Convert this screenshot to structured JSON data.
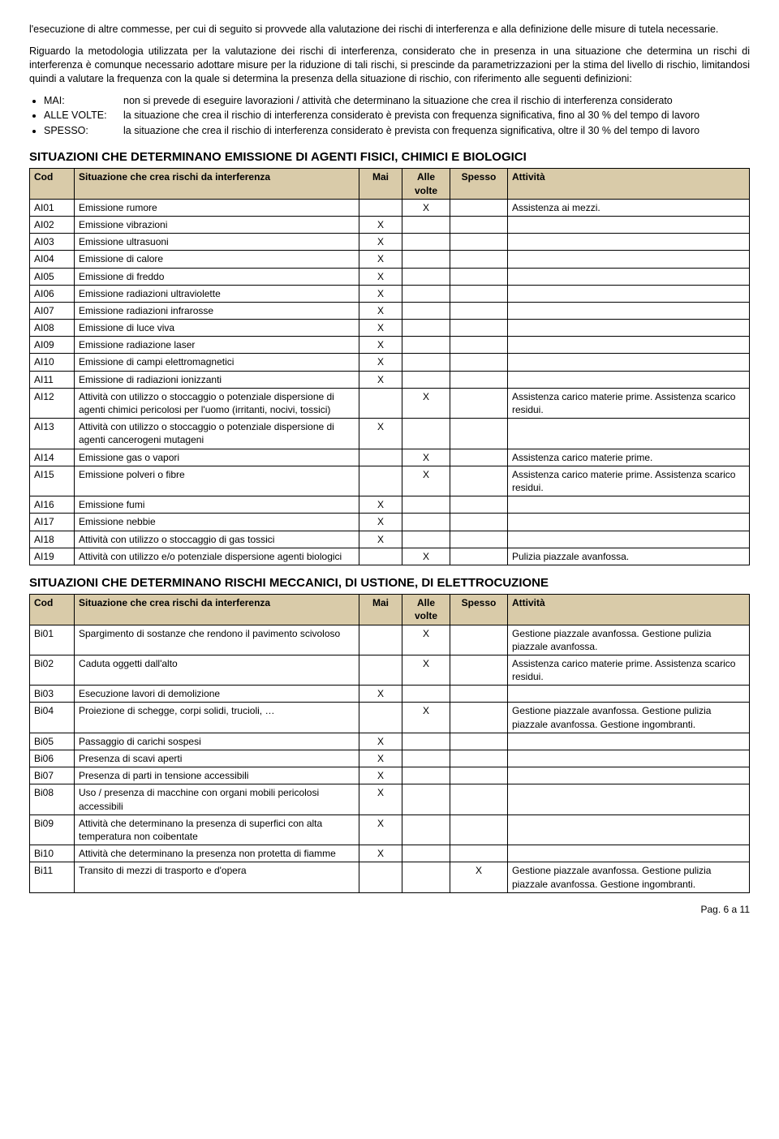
{
  "intro": {
    "p1": "l'esecuzione di altre commesse, per cui di seguito si provvede alla valutazione dei rischi di interferenza e alla definizione delle misure di tutela necessarie.",
    "p2": "Riguardo la metodologia utilizzata per la valutazione dei rischi di interferenza, considerato che in presenza in una situazione che determina un rischi di interferenza è comunque necessario adottare misure per la riduzione di tali rischi, si prescinde da parametrizzazioni per la stima del livello di rischio, limitandosi quindi a valutare la frequenza con la quale si determina la presenza della situazione di rischio, con riferimento alle seguenti definizioni:"
  },
  "defs": [
    {
      "label": "MAI:",
      "text": "non si prevede di eseguire lavorazioni / attività che determinano la situazione che crea il rischio di interferenza considerato"
    },
    {
      "label": "ALLE VOLTE:",
      "text": "la situazione che crea il rischio di interferenza considerato è prevista con frequenza significativa, fino al  30 % del tempo di lavoro"
    },
    {
      "label": "SPESSO:",
      "text": "la situazione che crea il rischio di interferenza considerato è prevista con frequenza significativa, oltre il   30 % del tempo di lavoro"
    }
  ],
  "headers": {
    "cod": "Cod",
    "sit": "Situazione che crea rischi da interferenza",
    "mai": "Mai",
    "alle": "Alle volte",
    "spesso": "Spesso",
    "att": "Attività"
  },
  "table1": {
    "title": "SITUAZIONI CHE DETERMINANO EMISSIONE DI AGENTI FISICI, CHIMICI E BIOLOGICI",
    "rows": [
      {
        "cod": "AI01",
        "sit": "Emissione rumore",
        "mai": "",
        "alle": "X",
        "spesso": "",
        "att": "Assistenza ai mezzi."
      },
      {
        "cod": "AI02",
        "sit": "Emissione vibrazioni",
        "mai": "X",
        "alle": "",
        "spesso": "",
        "att": ""
      },
      {
        "cod": "AI03",
        "sit": "Emissione ultrasuoni",
        "mai": "X",
        "alle": "",
        "spesso": "",
        "att": ""
      },
      {
        "cod": "AI04",
        "sit": "Emissione di calore",
        "mai": "X",
        "alle": "",
        "spesso": "",
        "att": ""
      },
      {
        "cod": "AI05",
        "sit": "Emissione di freddo",
        "mai": "X",
        "alle": "",
        "spesso": "",
        "att": ""
      },
      {
        "cod": "AI06",
        "sit": "Emissione radiazioni ultraviolette",
        "mai": "X",
        "alle": "",
        "spesso": "",
        "att": ""
      },
      {
        "cod": "AI07",
        "sit": "Emissione radiazioni infrarosse",
        "mai": "X",
        "alle": "",
        "spesso": "",
        "att": ""
      },
      {
        "cod": "AI08",
        "sit": "Emissione di luce viva",
        "mai": "X",
        "alle": "",
        "spesso": "",
        "att": ""
      },
      {
        "cod": "AI09",
        "sit": "Emissione radiazione laser",
        "mai": "X",
        "alle": "",
        "spesso": "",
        "att": ""
      },
      {
        "cod": "AI10",
        "sit": "Emissione di campi elettromagnetici",
        "mai": "X",
        "alle": "",
        "spesso": "",
        "att": ""
      },
      {
        "cod": "AI11",
        "sit": "Emissione di radiazioni ionizzanti",
        "mai": "X",
        "alle": "",
        "spesso": "",
        "att": ""
      },
      {
        "cod": "AI12",
        "sit": "Attività con utilizzo o stoccaggio o potenziale dispersione di agenti chimici pericolosi per l'uomo (irritanti, nocivi, tossici)",
        "mai": "",
        "alle": "X",
        "spesso": "",
        "att": "Assistenza carico materie prime. Assistenza scarico residui."
      },
      {
        "cod": "AI13",
        "sit": "Attività con utilizzo o stoccaggio o potenziale dispersione di agenti cancerogeni mutageni",
        "mai": "X",
        "alle": "",
        "spesso": "",
        "att": ""
      },
      {
        "cod": "AI14",
        "sit": "Emissione gas o vapori",
        "mai": "",
        "alle": "X",
        "spesso": "",
        "att": "Assistenza carico materie prime."
      },
      {
        "cod": "AI15",
        "sit": "Emissione polveri o fibre",
        "mai": "",
        "alle": "X",
        "spesso": "",
        "att": "Assistenza carico materie prime. Assistenza scarico residui."
      },
      {
        "cod": "AI16",
        "sit": "Emissione fumi",
        "mai": "X",
        "alle": "",
        "spesso": "",
        "att": ""
      },
      {
        "cod": "AI17",
        "sit": "Emissione nebbie",
        "mai": "X",
        "alle": "",
        "spesso": "",
        "att": ""
      },
      {
        "cod": "AI18",
        "sit": "Attività con utilizzo o stoccaggio di gas tossici",
        "mai": "X",
        "alle": "",
        "spesso": "",
        "att": ""
      },
      {
        "cod": "AI19",
        "sit": "Attività con utilizzo e/o potenziale dispersione agenti biologici",
        "mai": "",
        "alle": "X",
        "spesso": "",
        "att": "Pulizia piazzale avanfossa."
      }
    ]
  },
  "table2": {
    "title": "SITUAZIONI CHE DETERMINANO RISCHI MECCANICI, DI USTIONE, DI ELETTROCUZIONE",
    "rows": [
      {
        "cod": "Bi01",
        "sit": "Spargimento di sostanze che rendono il pavimento scivoloso",
        "mai": "",
        "alle": "X",
        "spesso": "",
        "att": "Gestione piazzale avanfossa. Gestione pulizia piazzale avanfossa."
      },
      {
        "cod": "Bi02",
        "sit": "Caduta oggetti dall'alto",
        "mai": "",
        "alle": "X",
        "spesso": "",
        "att": "Assistenza carico materie prime. Assistenza scarico residui."
      },
      {
        "cod": "Bi03",
        "sit": "Esecuzione lavori di demolizione",
        "mai": "X",
        "alle": "",
        "spesso": "",
        "att": ""
      },
      {
        "cod": "Bi04",
        "sit": "Proiezione di schegge, corpi solidi, trucioli, …",
        "mai": "",
        "alle": "X",
        "spesso": "",
        "att": "Gestione piazzale avanfossa. Gestione pulizia piazzale avanfossa. Gestione ingombranti."
      },
      {
        "cod": "Bi05",
        "sit": "Passaggio di carichi sospesi",
        "mai": "X",
        "alle": "",
        "spesso": "",
        "att": ""
      },
      {
        "cod": "Bi06",
        "sit": "Presenza di scavi aperti",
        "mai": "X",
        "alle": "",
        "spesso": "",
        "att": ""
      },
      {
        "cod": "Bi07",
        "sit": "Presenza di parti in tensione accessibili",
        "mai": "X",
        "alle": "",
        "spesso": "",
        "att": ""
      },
      {
        "cod": "Bi08",
        "sit": "Uso / presenza di macchine con organi mobili pericolosi accessibili",
        "mai": "X",
        "alle": "",
        "spesso": "",
        "att": ""
      },
      {
        "cod": "Bi09",
        "sit": "Attività che determinano la presenza di superfici con alta temperatura non coibentate",
        "mai": "X",
        "alle": "",
        "spesso": "",
        "att": ""
      },
      {
        "cod": "Bi10",
        "sit": "Attività che determinano la presenza non protetta di fiamme",
        "mai": "X",
        "alle": "",
        "spesso": "",
        "att": ""
      },
      {
        "cod": "Bi11",
        "sit": "Transito di mezzi di trasporto e d'opera",
        "mai": "",
        "alle": "",
        "spesso": "X",
        "att": "Gestione piazzale avanfossa. Gestione pulizia piazzale avanfossa. Gestione ingombranti."
      }
    ]
  },
  "footer": "Pag. 6 a 11"
}
